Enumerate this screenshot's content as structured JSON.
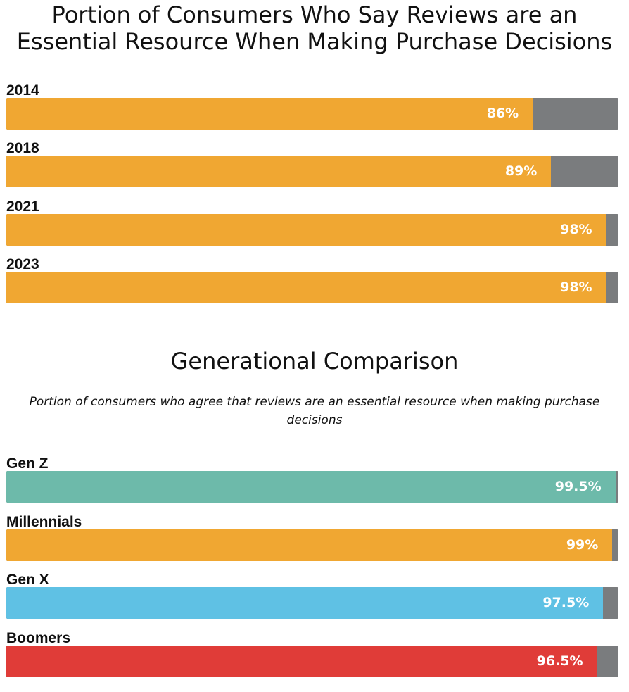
{
  "chart_data": [
    {
      "type": "bar",
      "orientation": "horizontal",
      "stacked": true,
      "title": "Portion of Consumers Who Say Reviews are an Essential Resource When Making Purchase Decisions",
      "categories": [
        "2014",
        "2018",
        "2021",
        "2023"
      ],
      "values": [
        86,
        89,
        98,
        98
      ],
      "value_labels": [
        "86%",
        "89%",
        "98%",
        "98%"
      ],
      "colors": [
        "#f0a732",
        "#f0a732",
        "#f0a732",
        "#f0a732"
      ],
      "remainder_color": "#7a7c7e",
      "xlim": [
        0,
        100
      ],
      "xlabel": "",
      "ylabel": ""
    },
    {
      "type": "bar",
      "orientation": "horizontal",
      "stacked": true,
      "title": "Generational Comparison",
      "subtitle": "Portion of consumers who agree that reviews are an essential resource when making purchase decisions",
      "categories": [
        "Gen Z",
        "Millennials",
        "Gen X",
        "Boomers"
      ],
      "values": [
        99.5,
        99,
        97.5,
        96.5
      ],
      "value_labels": [
        "99.5%",
        "99%",
        "97.5%",
        "96.5%"
      ],
      "colors": [
        "#6dbaaa",
        "#f0a732",
        "#5fc1e4",
        "#e03c38"
      ],
      "remainder_color": "#7a7c7e",
      "xlim": [
        0,
        100
      ],
      "xlabel": "",
      "ylabel": ""
    }
  ]
}
